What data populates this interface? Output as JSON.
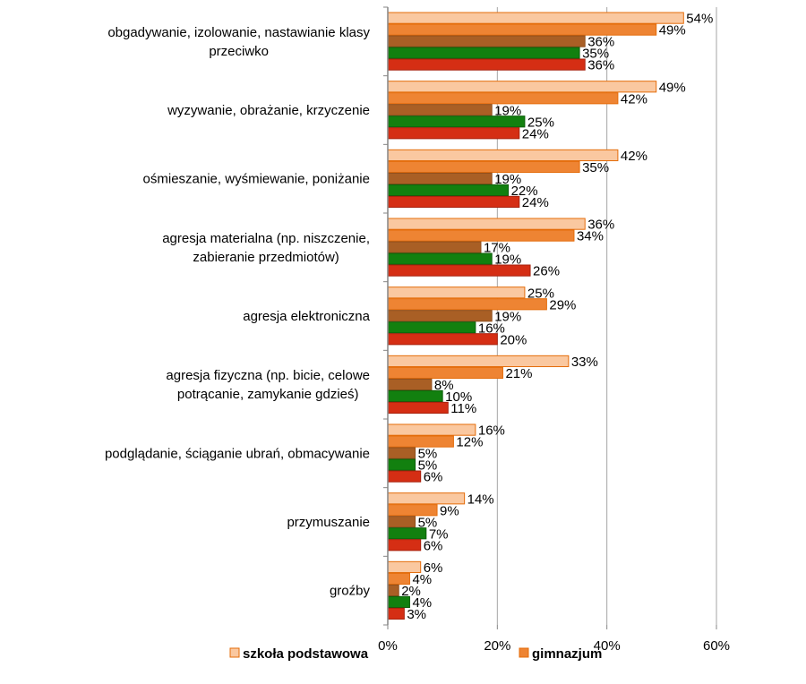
{
  "chart_data": {
    "type": "bar",
    "orientation": "horizontal",
    "categories": [
      [
        "obgadywanie, izolowanie, nastawianie klasy",
        "przeciwko"
      ],
      [
        "wyzywanie, obrażanie, krzyczenie"
      ],
      [
        "ośmieszanie, wyśmiewanie, poniżanie"
      ],
      [
        "agresja materialna (np. niszczenie,",
        "zabieranie przedmiotów)"
      ],
      [
        "agresja elektroniczna"
      ],
      [
        "agresja fizyczna (np. bicie, celowe",
        "potrącanie, zamykanie gdzieś)"
      ],
      [
        "podglądanie, ściąganie ubrań, obmacywanie"
      ],
      [
        "przymuszanie"
      ],
      [
        "groźby"
      ]
    ],
    "series": [
      {
        "name": "szkoła podstawowa",
        "fill": "#FAC8A0",
        "stroke": "#E46C0A",
        "values": [
          54,
          49,
          42,
          36,
          25,
          33,
          16,
          14,
          6
        ]
      },
      {
        "name": "gimnazjum",
        "fill": "#EE8433",
        "stroke": "#E46C0A",
        "values": [
          49,
          42,
          35,
          34,
          29,
          21,
          12,
          9,
          4
        ]
      },
      {
        "name": "",
        "fill": "#A95F25",
        "stroke": "#8E4E1C",
        "values": [
          36,
          19,
          19,
          17,
          19,
          8,
          5,
          5,
          2
        ]
      },
      {
        "name": "",
        "fill": "#12800F",
        "stroke": "#0C5E0A",
        "values": [
          35,
          25,
          22,
          19,
          16,
          10,
          5,
          7,
          4
        ]
      },
      {
        "name": "",
        "fill": "#D52E14",
        "stroke": "#A8200C",
        "values": [
          36,
          24,
          24,
          26,
          20,
          11,
          6,
          6,
          3
        ]
      }
    ],
    "value_suffix": "%",
    "xlim": [
      0,
      60
    ],
    "x_ticks": [
      0,
      20,
      40,
      60
    ],
    "x_tick_labels": [
      "0%",
      "20%",
      "40%",
      "60%"
    ],
    "grid": true,
    "legend_position": "bottom"
  }
}
